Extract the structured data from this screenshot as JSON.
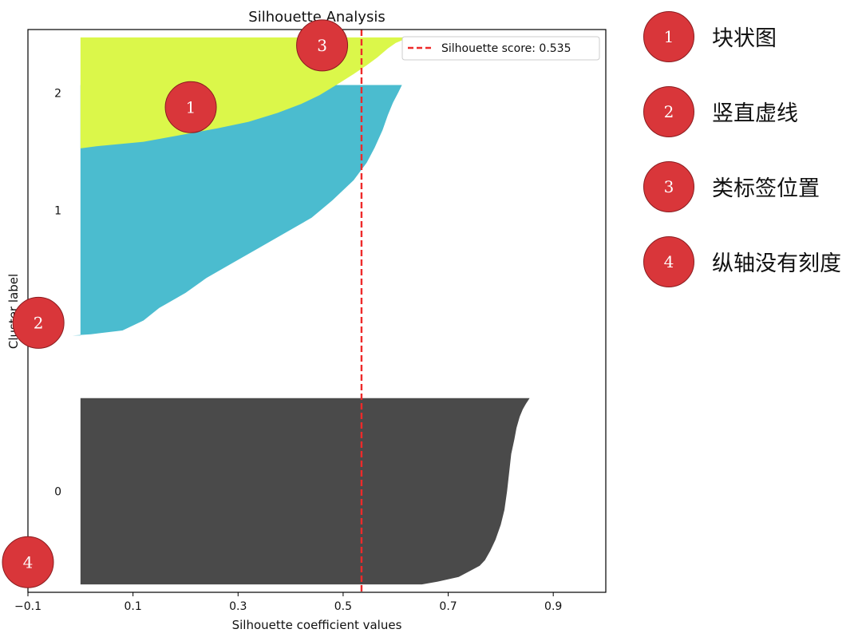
{
  "chart_data": {
    "type": "silhouette",
    "title": "Silhouette Analysis",
    "xlabel": "Silhouette coefficient values",
    "ylabel": "Cluster label",
    "xlim": [
      -0.1,
      1.0
    ],
    "xticks": [
      -0.1,
      0.1,
      0.3,
      0.5,
      0.7,
      0.9
    ],
    "xtick_labels": [
      "−0.1",
      "0.1",
      "0.3",
      "0.5",
      "0.7",
      "0.9"
    ],
    "ylim": [
      0,
      710
    ],
    "silhouette_score": 0.535,
    "legend_label": "Silhouette score: 0.535",
    "score_line_color": "#ee2a2a",
    "clusters": [
      {
        "label": "0",
        "color": "#4a4a4a",
        "y_start": 10,
        "y_end": 245,
        "profile": [
          [
            0,
            0.855
          ],
          [
            0.03,
            0.848
          ],
          [
            0.06,
            0.842
          ],
          [
            0.1,
            0.836
          ],
          [
            0.16,
            0.83
          ],
          [
            0.22,
            0.826
          ],
          [
            0.3,
            0.82
          ],
          [
            0.4,
            0.816
          ],
          [
            0.5,
            0.812
          ],
          [
            0.6,
            0.807
          ],
          [
            0.68,
            0.8
          ],
          [
            0.76,
            0.79
          ],
          [
            0.82,
            0.78
          ],
          [
            0.87,
            0.77
          ],
          [
            0.9,
            0.76
          ],
          [
            0.93,
            0.74
          ],
          [
            0.96,
            0.72
          ],
          [
            0.985,
            0.68
          ],
          [
            1.0,
            0.65
          ]
        ]
      },
      {
        "label": "1",
        "color": "#4bbccf",
        "y_start": 324,
        "y_end": 640,
        "profile": [
          [
            0,
            0.612
          ],
          [
            0.03,
            0.605
          ],
          [
            0.07,
            0.595
          ],
          [
            0.12,
            0.585
          ],
          [
            0.18,
            0.575
          ],
          [
            0.25,
            0.56
          ],
          [
            0.31,
            0.545
          ],
          [
            0.38,
            0.52
          ],
          [
            0.46,
            0.48
          ],
          [
            0.53,
            0.44
          ],
          [
            0.59,
            0.39
          ],
          [
            0.65,
            0.34
          ],
          [
            0.71,
            0.29
          ],
          [
            0.77,
            0.24
          ],
          [
            0.83,
            0.2
          ],
          [
            0.89,
            0.15
          ],
          [
            0.94,
            0.12
          ],
          [
            0.98,
            0.08
          ],
          [
            0.995,
            0.02
          ],
          [
            1.0,
            -0.015
          ]
        ]
      },
      {
        "label": "2",
        "color": "#dbf74a",
        "y_start": 560,
        "y_end": 700,
        "profile": [
          [
            0,
            0.625
          ],
          [
            0.05,
            0.6
          ],
          [
            0.1,
            0.585
          ],
          [
            0.18,
            0.565
          ],
          [
            0.25,
            0.545
          ],
          [
            0.33,
            0.52
          ],
          [
            0.42,
            0.49
          ],
          [
            0.52,
            0.455
          ],
          [
            0.6,
            0.42
          ],
          [
            0.68,
            0.375
          ],
          [
            0.76,
            0.32
          ],
          [
            0.82,
            0.26
          ],
          [
            0.88,
            0.19
          ],
          [
            0.94,
            0.12
          ],
          [
            0.98,
            0.03
          ],
          [
            1.0,
            0.0
          ]
        ]
      }
    ],
    "markers": [
      {
        "number": "1",
        "x": 0.21,
        "y": 612
      },
      {
        "number": "2",
        "x": -0.08,
        "y": 340
      },
      {
        "number": "3",
        "x": 0.46,
        "y": 690
      },
      {
        "number": "4",
        "x": -0.1,
        "y": 38
      }
    ]
  },
  "legend": [
    {
      "number": "1",
      "text": "块状图"
    },
    {
      "number": "2",
      "text": "竖直虚线"
    },
    {
      "number": "3",
      "text": "类标签位置"
    },
    {
      "number": "4",
      "text": "纵轴没有刻度"
    }
  ],
  "colors": {
    "badge_fill": "#d9363a",
    "badge_stroke": "#8a1c1f",
    "axis": "#000000"
  }
}
